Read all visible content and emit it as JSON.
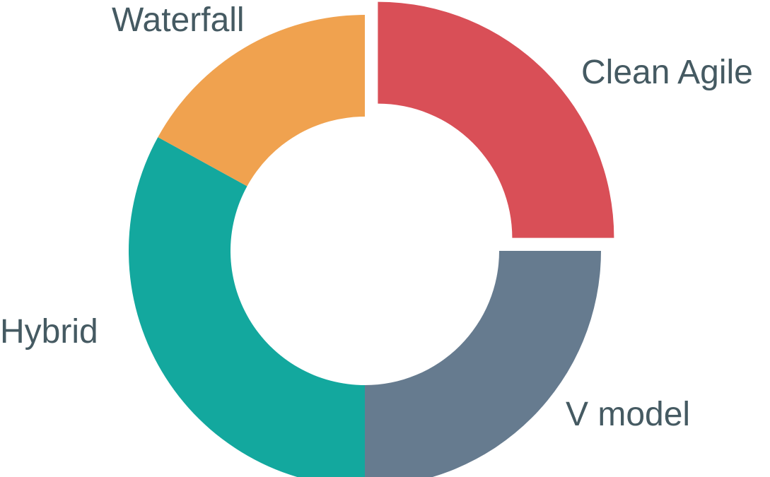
{
  "chart_data": {
    "type": "pie",
    "style": "donut",
    "slices": [
      {
        "label": "Clean Agile",
        "value": 25,
        "color": "#d94f57",
        "exploded": true
      },
      {
        "label": "V model",
        "value": 25,
        "color": "#667b8f",
        "exploded": false
      },
      {
        "label": "Hybrid",
        "value": 33,
        "color": "#13a89e",
        "exploded": false
      },
      {
        "label": "Waterfall",
        "value": 17,
        "color": "#f0a24f",
        "exploded": false
      }
    ],
    "start": "top",
    "direction": "clockwise",
    "legend": "none",
    "label_color": "#455a62"
  }
}
